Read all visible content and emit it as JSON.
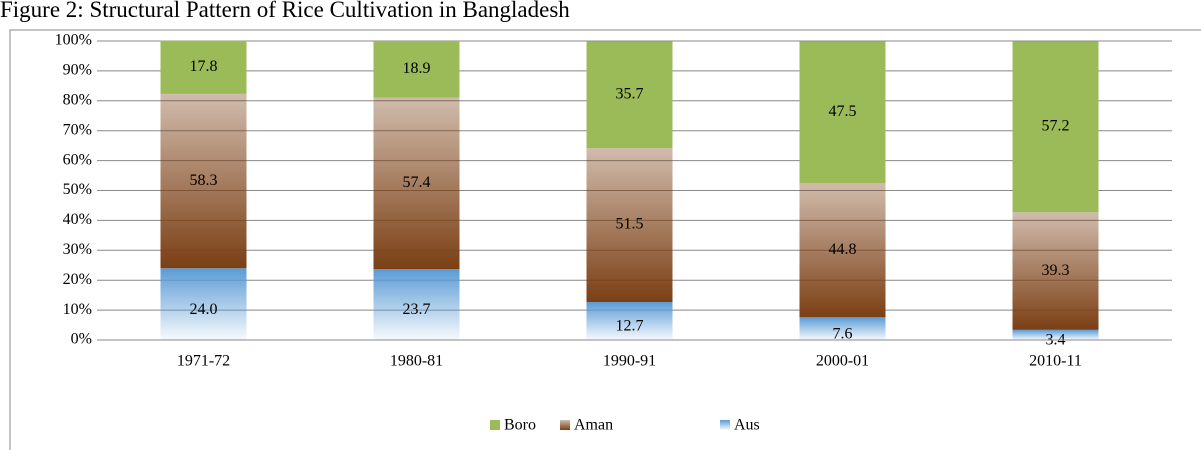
{
  "chart_data": {
    "type": "stacked_bar",
    "title": "Figure 2: Structural Pattern of Rice Cultivation in Bangladesh",
    "categories": [
      "1971-72",
      "1980-81",
      "1990-91",
      "2000-01",
      "2010-11"
    ],
    "series": [
      {
        "name": "Aus",
        "color": "#5b9bd5",
        "values": [
          24.0,
          23.7,
          12.7,
          7.6,
          3.4
        ],
        "value_labels": [
          "24.0",
          "23.7",
          "12.7",
          "7.6",
          "3.4"
        ]
      },
      {
        "name": "Aman",
        "color": "#7b3f14",
        "values": [
          58.3,
          57.4,
          51.5,
          44.8,
          39.3
        ]
      },
      {
        "name": "Boro",
        "color": "#9bbb59",
        "values": [
          17.8,
          18.9,
          35.7,
          47.5,
          57.2
        ]
      }
    ],
    "ylim": [
      0,
      100
    ],
    "yticks": [
      {
        "value": 0,
        "label": "0%"
      },
      {
        "value": 10,
        "label": "10%"
      },
      {
        "value": 20,
        "label": "20%"
      },
      {
        "value": 30,
        "label": "30%"
      },
      {
        "value": 40,
        "label": "40%"
      },
      {
        "value": 50,
        "label": "50%"
      },
      {
        "value": 60,
        "label": "60%"
      },
      {
        "value": 70,
        "label": "70%"
      },
      {
        "value": 80,
        "label": "80%"
      },
      {
        "value": 90,
        "label": "90%"
      },
      {
        "value": 100,
        "label": "100%"
      }
    ],
    "grid": true,
    "legend": "bottom"
  }
}
